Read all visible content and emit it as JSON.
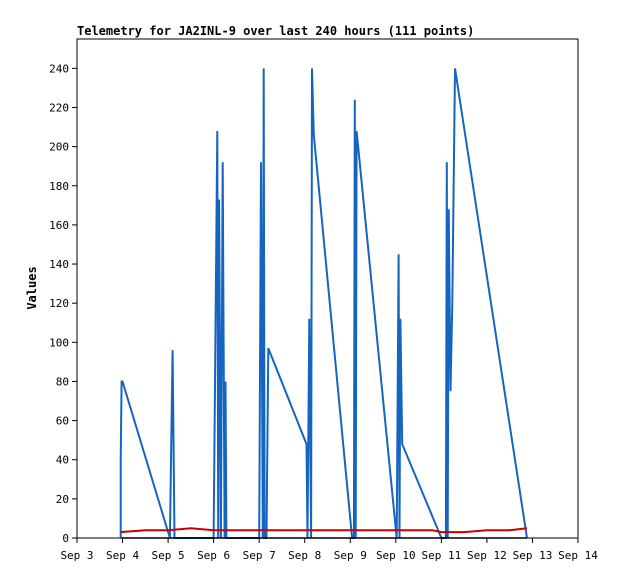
{
  "chart_data": {
    "type": "line",
    "title": "Telemetry for JA2INL-9 over last 240 hours (111 points)",
    "xlabel": "",
    "ylabel": "Values",
    "ylim": [
      0,
      255
    ],
    "xlim": [
      0,
      11
    ],
    "ytick_values": [
      0,
      20,
      40,
      60,
      80,
      100,
      120,
      140,
      160,
      180,
      200,
      220,
      240
    ],
    "xtick_labels": [
      "Sep 3",
      "Sep 4",
      "Sep 5",
      "Sep 6",
      "Sep 7",
      "Sep 8",
      "Sep 9",
      "Sep 10",
      "Sep 11",
      "Sep 12",
      "Sep 13",
      "Sep 14"
    ],
    "series": [
      {
        "color": "#1565c0",
        "x": [
          0.96,
          0.96,
          0.98,
          1.0,
          2.04,
          2.1,
          2.14,
          3.0,
          3.08,
          3.1,
          3.12,
          3.16,
          3.2,
          3.24,
          3.26,
          3.28,
          4.0,
          4.04,
          4.08,
          4.1,
          4.12,
          4.16,
          4.2,
          5.04,
          5.06,
          5.1,
          5.14,
          5.16,
          5.2,
          6.04,
          6.08,
          6.1,
          6.12,
          6.14,
          7.02,
          7.06,
          7.08,
          7.1,
          7.14,
          8.0,
          8.1,
          8.12,
          8.14,
          8.16,
          8.2,
          8.24,
          8.3,
          9.88
        ],
        "y": [
          0,
          40,
          80,
          80,
          0,
          96,
          0,
          0,
          208,
          0,
          173,
          0,
          192,
          0,
          80,
          0,
          0,
          192,
          0,
          240,
          0,
          0,
          97,
          48,
          0,
          112,
          0,
          240,
          206,
          0,
          0,
          224,
          0,
          208,
          0,
          145,
          0,
          112,
          48,
          0,
          0,
          192,
          0,
          168,
          75,
          120,
          240,
          0
        ]
      },
      {
        "color": "#cc0000",
        "x": [
          0.96,
          1.5,
          2.0,
          2.5,
          3.0,
          4.0,
          5.0,
          6.0,
          7.0,
          7.8,
          8.0,
          8.5,
          9.0,
          9.5,
          9.88
        ],
        "y": [
          3,
          4,
          4,
          5,
          4,
          4,
          4,
          4,
          4,
          4,
          3,
          3,
          4,
          4,
          5
        ]
      },
      {
        "color": "#000000",
        "x": [
          0.96,
          9.88
        ],
        "y": [
          0,
          0
        ]
      }
    ]
  }
}
